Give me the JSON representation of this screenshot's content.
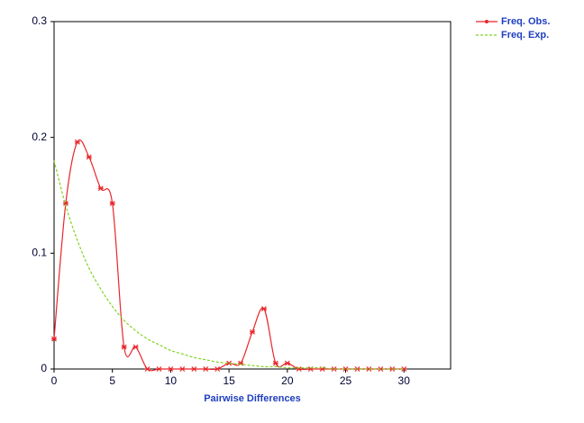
{
  "chart_data": {
    "type": "line",
    "x_label": "Pairwise Differences",
    "x": [
      0,
      1,
      2,
      3,
      4,
      5,
      6,
      7,
      8,
      9,
      10,
      11,
      12,
      13,
      14,
      15,
      16,
      17,
      18,
      19,
      20,
      21,
      22,
      23,
      24,
      25,
      26,
      27,
      28,
      29,
      30
    ],
    "series": [
      {
        "name": "Freq. Obs.",
        "color": "#e8262a",
        "style": "solid",
        "markers": true,
        "values": [
          0.026,
          0.143,
          0.196,
          0.183,
          0.156,
          0.143,
          0.019,
          0.019,
          0,
          0,
          0,
          0,
          0,
          0,
          0,
          0.005,
          0.005,
          0.032,
          0.052,
          0.005,
          0.005,
          0,
          0,
          0,
          0,
          0,
          0,
          0,
          0,
          0,
          0
        ]
      },
      {
        "name": "Freq. Exp.",
        "color": "#7fd420",
        "style": "dashed",
        "markers": false,
        "values": [
          0.18,
          0.141,
          0.111,
          0.087,
          0.069,
          0.054,
          0.042,
          0.033,
          0.026,
          0.021,
          0.016,
          0.013,
          0.01,
          0.008,
          0.006,
          0.005,
          0.004,
          0.003,
          0.002,
          0.002,
          0.001,
          0.001,
          0.001,
          0.001,
          0,
          0,
          0,
          0,
          0,
          0,
          0
        ]
      }
    ],
    "xlim": [
      0,
      34
    ],
    "ylim": [
      0,
      0.3
    ],
    "xticks": [
      0,
      5,
      10,
      15,
      20,
      25,
      30
    ],
    "yticks": [
      0,
      0.1,
      0.2,
      0.3
    ]
  }
}
